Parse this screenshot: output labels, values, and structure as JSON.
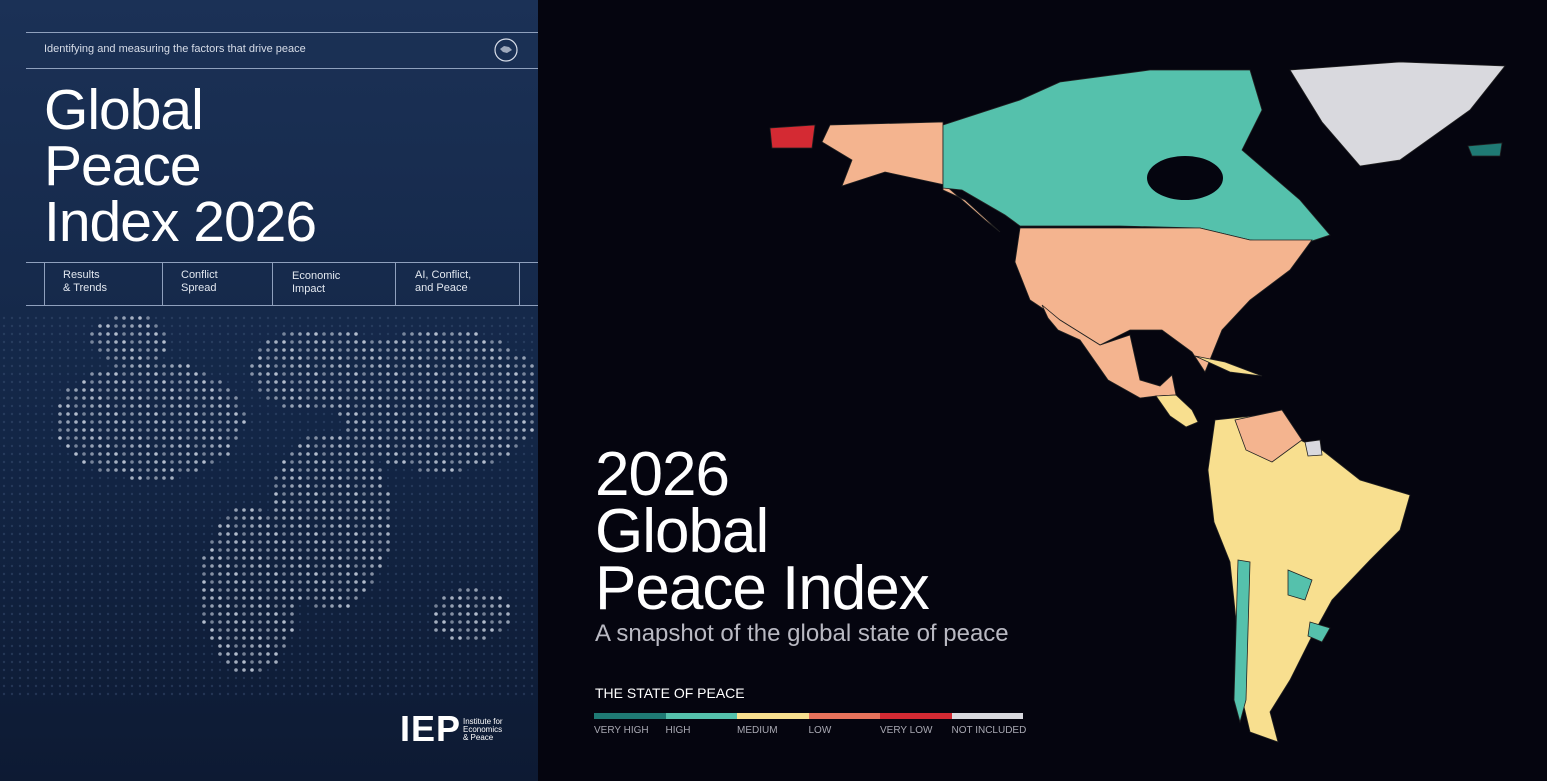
{
  "cover": {
    "tagline": "Identifying and measuring the factors that drive peace",
    "title_lines": [
      "Global",
      "Peace",
      "Index 2026"
    ],
    "sections": [
      [
        "Results",
        "& Trends"
      ],
      [
        "Conflict",
        "Spread"
      ],
      [
        "Economic",
        "Impact"
      ],
      [
        "AI, Conflict,",
        "and Peace"
      ]
    ],
    "logo": {
      "mark": "IEP",
      "lines": [
        "Institute for",
        "Economics",
        "& Peace"
      ]
    }
  },
  "feature": {
    "title_lines": [
      "2026",
      "Global",
      "Peace Index"
    ],
    "subtitle": "A snapshot of the global state of peace",
    "legend": {
      "title": "THE STATE OF PEACE",
      "items": [
        {
          "label": "VERY HIGH",
          "color": "#1f7a74"
        },
        {
          "label": "HIGH",
          "color": "#55c1ac"
        },
        {
          "label": "MEDIUM",
          "color": "#f8df8f"
        },
        {
          "label": "LOW",
          "color": "#e8735c"
        },
        {
          "label": "VERY LOW",
          "color": "#d42a33"
        },
        {
          "label": "NOT INCLUDED",
          "color": "#d9d9de"
        }
      ]
    }
  }
}
